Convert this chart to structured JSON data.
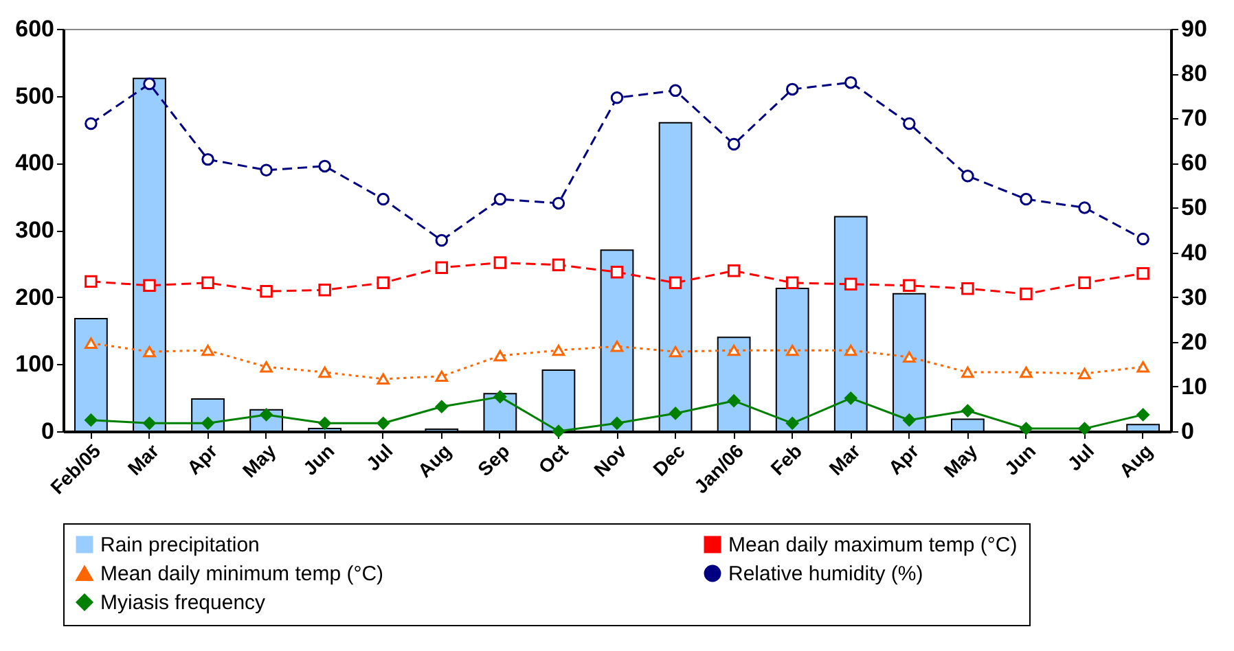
{
  "chart_data": {
    "type": "bar",
    "categories": [
      "Feb/05",
      "Mar",
      "Apr",
      "May",
      "Jun",
      "Jul",
      "Aug",
      "Sep",
      "Oct",
      "Nov",
      "Dec",
      "Jan/06",
      "Feb",
      "Mar",
      "Apr",
      "May",
      "Jun",
      "Jul",
      "Aug"
    ],
    "ylim": [
      0,
      600
    ],
    "yticks": [
      0,
      100,
      200,
      300,
      400,
      500,
      600
    ],
    "y2lim": [
      0,
      90
    ],
    "y2ticks": [
      0,
      10,
      20,
      30,
      40,
      50,
      60,
      70,
      80,
      90
    ],
    "grid": false,
    "legend": "bottom",
    "series": [
      {
        "name": "Rain precipitation",
        "color": "#99ccff",
        "values": [
          168,
          526,
          48,
          32,
          4,
          null,
          3,
          56,
          91,
          270,
          460,
          140,
          213,
          320,
          205,
          18,
          null,
          null,
          10
        ]
      },
      {
        "name": "Mean daily maximum temp (°C)",
        "type": "line",
        "axis": "y2",
        "marker": "square",
        "line_style": "dashed",
        "color": "#ff0000",
        "values": [
          33.5,
          32.6,
          33.2,
          31.3,
          31.6,
          33.2,
          36.6,
          37.7,
          37.2,
          35.6,
          33.2,
          35.9,
          33.2,
          32.9,
          32.6,
          31.9,
          30.7,
          33.2,
          35.3
        ]
      },
      {
        "name": "Mean daily minimum temp (°C)",
        "type": "line",
        "axis": "y2",
        "marker": "triangle",
        "line_style": "dotted",
        "color": "#ff6600",
        "values": [
          19.7,
          17.8,
          18.1,
          14.4,
          13.2,
          11.7,
          12.3,
          16.9,
          18.1,
          19,
          17.8,
          18.1,
          18.1,
          18.1,
          16.6,
          13.2,
          13.2,
          12.9,
          14.4
        ]
      },
      {
        "name": "Relative humidity (%)",
        "type": "line",
        "axis": "y2",
        "marker": "circle",
        "line_style": "dashed",
        "color": "#000080",
        "values": [
          68.8,
          77.7,
          60.8,
          58.4,
          59.3,
          51.9,
          42.7,
          51.9,
          51,
          74.6,
          76.2,
          64.2,
          76.5,
          78,
          68.8,
          57.1,
          51.9,
          50,
          43
        ]
      },
      {
        "name": "Myiasis frequency",
        "type": "line",
        "axis": "y2",
        "marker": "diamond",
        "line_style": "solid",
        "color": "#008000",
        "values": [
          2.5,
          1.8,
          1.8,
          3.7,
          1.8,
          1.8,
          5.5,
          7.7,
          0,
          1.8,
          4,
          6.8,
          1.8,
          7.4,
          2.5,
          4.6,
          0.6,
          0.6,
          3.7
        ]
      }
    ]
  }
}
